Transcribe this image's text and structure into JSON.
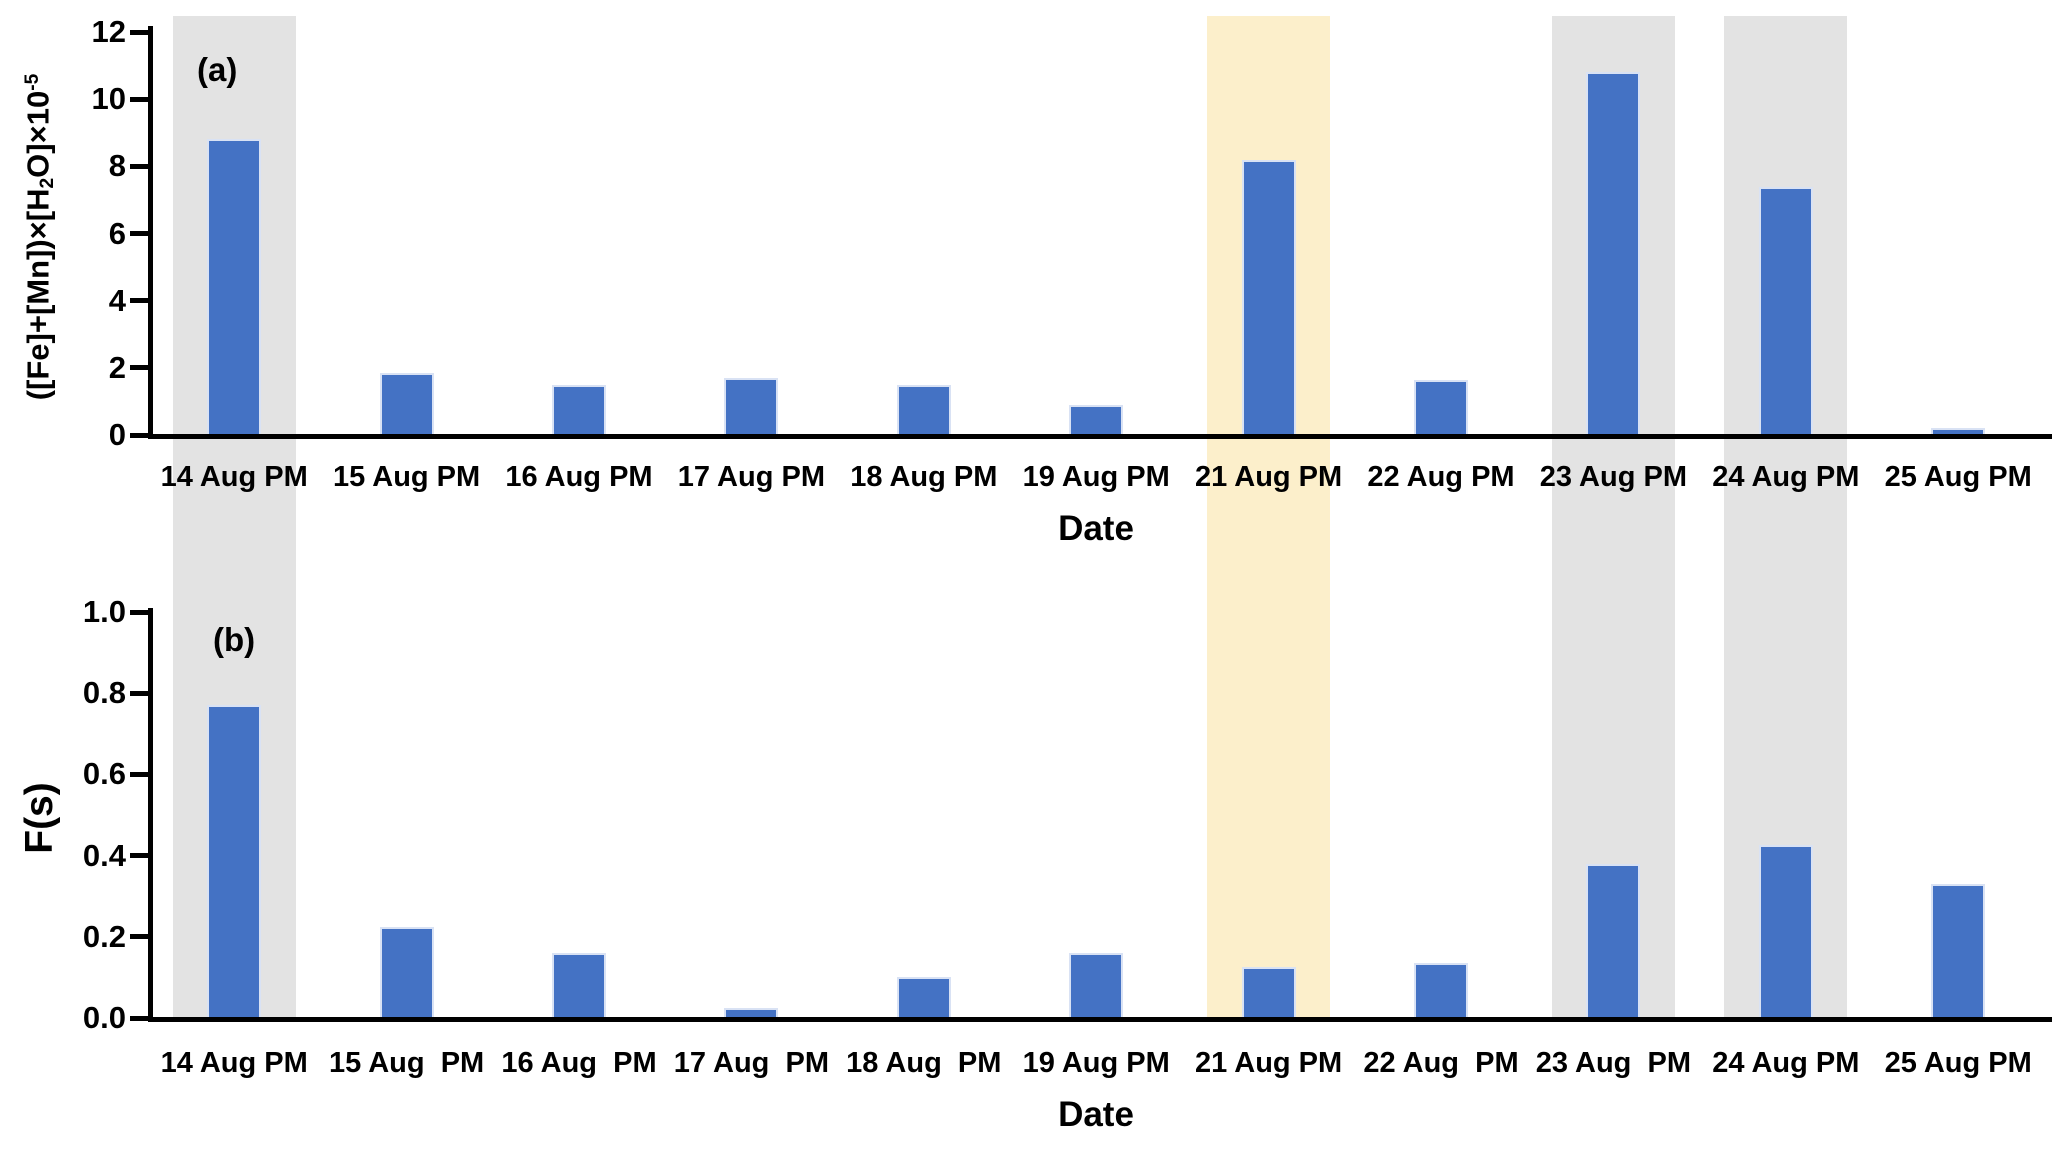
{
  "figure": {
    "background": "#FFFFFF",
    "bar_color": "#4472C4",
    "bar_edge_color": "#D9E2F4",
    "axis_color": "#000000",
    "text_color": "#000000",
    "band_gray": "#E3E3E3",
    "band_yellow": "#FCEFCB",
    "highlight_bands": [
      {
        "category": "14 Aug PM",
        "category_index": 0,
        "color": "#E3E3E3"
      },
      {
        "category": "21 Aug PM",
        "category_index": 6,
        "color": "#FCEFCB"
      },
      {
        "category": "23 Aug PM",
        "category_index": 8,
        "color": "#E3E3E3"
      },
      {
        "category": "24 Aug PM",
        "category_index": 9,
        "color": "#E3E3E3"
      }
    ]
  },
  "chart_data": [
    {
      "panel": "a",
      "panel_label": "(a)",
      "type": "bar",
      "categories": [
        "14 Aug PM",
        "15 Aug PM",
        "16 Aug PM",
        "17 Aug PM",
        "18 Aug PM",
        "19 Aug PM",
        "21 Aug PM",
        "22 Aug PM",
        "23 Aug PM",
        "24 Aug PM",
        "25 Aug PM"
      ],
      "values": [
        8.8,
        1.85,
        1.5,
        1.7,
        1.5,
        0.9,
        8.2,
        1.65,
        10.8,
        7.4,
        0.2
      ],
      "xlabel": "Date",
      "ylabel": "([Fe]+[Mn])×[H₂O]×10⁻⁵",
      "ylabel_parts": [
        {
          "text": "([Fe]+[Mn])×[H"
        },
        {
          "text": "2",
          "style": "sub"
        },
        {
          "text": "O]×10"
        },
        {
          "text": "-5",
          "style": "sup"
        }
      ],
      "ylim": [
        0,
        12
      ],
      "yticks": [
        {
          "label": "0",
          "value": 0
        },
        {
          "label": "2",
          "value": 2
        },
        {
          "label": "4",
          "value": 4
        },
        {
          "label": "6",
          "value": 6
        },
        {
          "label": "8",
          "value": 8
        },
        {
          "label": "10",
          "value": 10
        },
        {
          "label": "12",
          "value": 12
        }
      ],
      "grid": false,
      "legend": false
    },
    {
      "panel": "b",
      "panel_label": "(b)",
      "type": "bar",
      "categories": [
        "14 Aug PM",
        "15 Aug  PM",
        "16 Aug  PM",
        "17 Aug  PM",
        "18 Aug  PM",
        "19 Aug PM",
        "21 Aug PM",
        "22 Aug  PM",
        "23 Aug  PM",
        "24 Aug PM",
        "25 Aug PM"
      ],
      "values": [
        0.77,
        0.225,
        0.16,
        0.025,
        0.1,
        0.16,
        0.125,
        0.135,
        0.38,
        0.425,
        0.33
      ],
      "xlabel": "Date",
      "ylabel": "F(s)",
      "ylim": [
        0,
        1.0
      ],
      "yticks": [
        {
          "label": "0.0",
          "value": 0
        },
        {
          "label": "0.2",
          "value": 0.2
        },
        {
          "label": "0.4",
          "value": 0.4
        },
        {
          "label": "0.6",
          "value": 0.6
        },
        {
          "label": "0.8",
          "value": 0.8
        },
        {
          "label": "1.0",
          "value": 1.0
        }
      ],
      "grid": false,
      "legend": false
    }
  ]
}
